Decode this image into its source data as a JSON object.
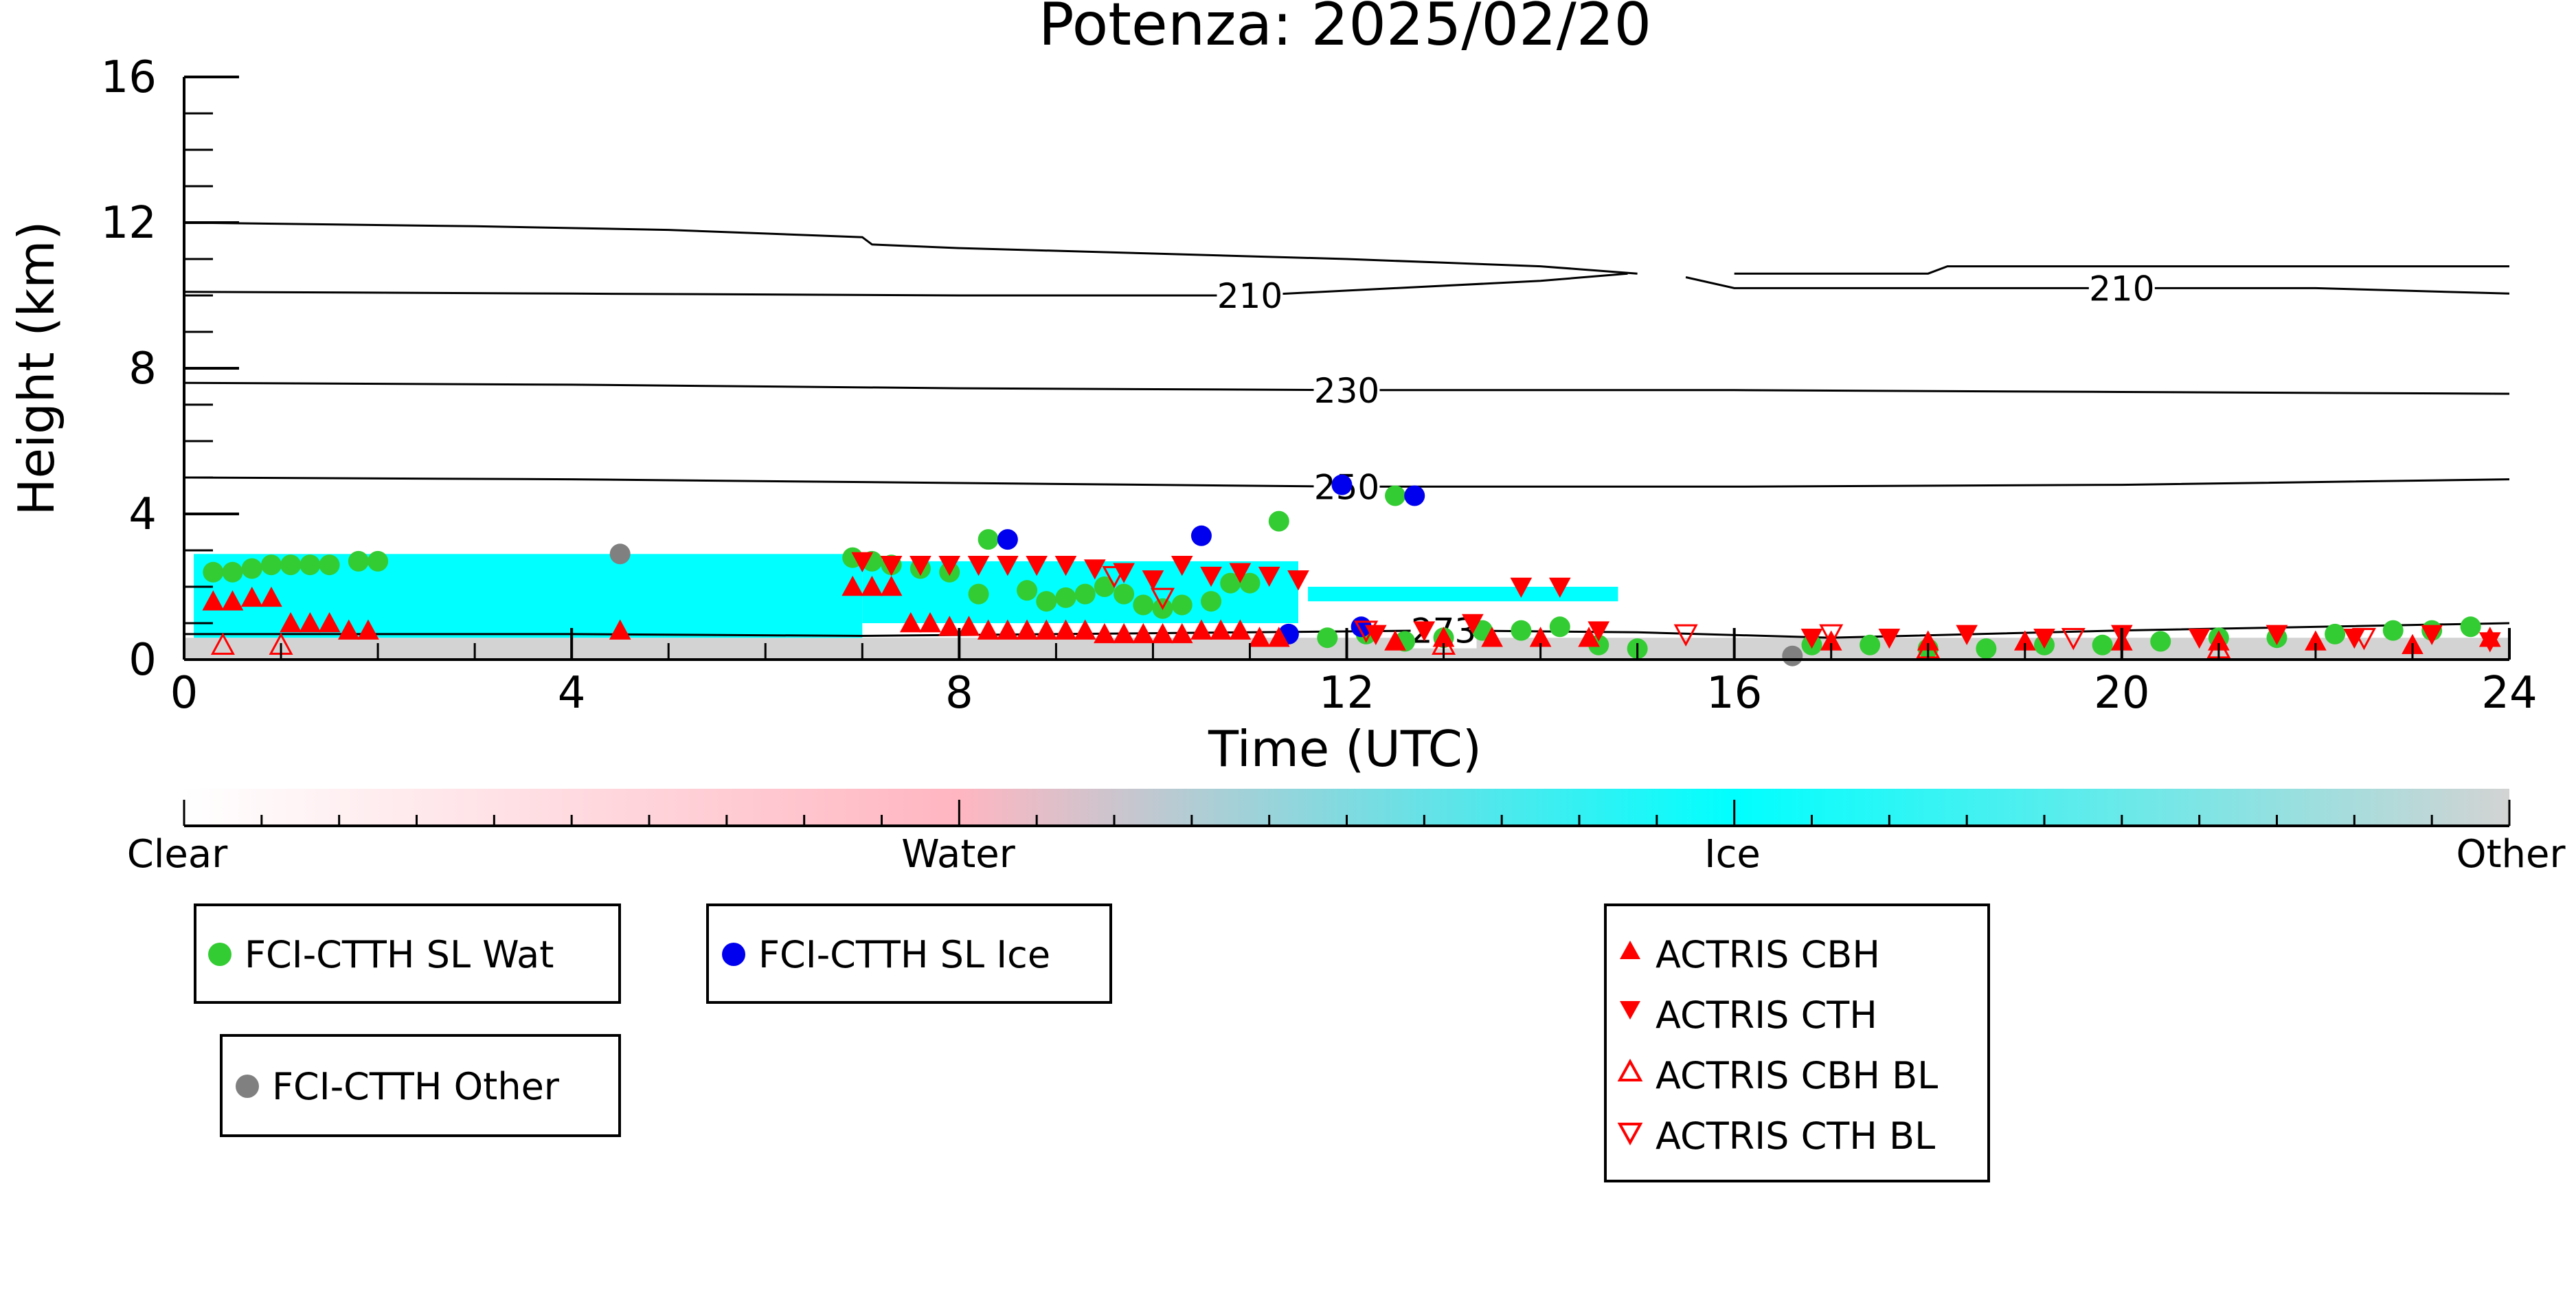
{
  "chart_data": {
    "type": "scatter",
    "title": "Potenza: 2025/02/20",
    "xlabel": "Time (UTC)",
    "ylabel": "Height (km)",
    "xlim": [
      0,
      24
    ],
    "ylim": [
      0,
      16
    ],
    "x_ticks": [
      "0",
      "4",
      "8",
      "12",
      "16",
      "20",
      "24"
    ],
    "y_ticks": [
      "0",
      "4",
      "8",
      "12",
      "16"
    ],
    "colorbar": {
      "labels": [
        "Clear",
        "Water",
        "Ice",
        "Other"
      ],
      "colors": [
        "#ffffff",
        "#ffb6c1",
        "#00ffff",
        "#d3d3d3"
      ]
    },
    "contours": [
      {
        "label": "210",
        "points": [
          [
            0,
            10.1
          ],
          [
            4,
            10.05
          ],
          [
            8,
            10.0
          ],
          [
            11,
            10.0
          ],
          [
            12.5,
            10.2
          ],
          [
            14,
            10.4
          ],
          [
            14.9,
            10.6
          ]
        ]
      },
      {
        "label": "210",
        "points": [
          [
            15.5,
            10.5
          ],
          [
            16,
            10.2
          ],
          [
            18,
            10.2
          ],
          [
            20,
            10.2
          ],
          [
            22,
            10.2
          ],
          [
            24,
            10.05
          ]
        ]
      },
      {
        "label": "",
        "points": [
          [
            0,
            12.0
          ],
          [
            3,
            11.9
          ],
          [
            5,
            11.8
          ],
          [
            7,
            11.6
          ],
          [
            7.1,
            11.4
          ],
          [
            8,
            11.3
          ],
          [
            10,
            11.15
          ],
          [
            12,
            11.0
          ],
          [
            13,
            10.9
          ],
          [
            14,
            10.8
          ],
          [
            15,
            10.6
          ]
        ]
      },
      {
        "label": "",
        "points": [
          [
            16,
            10.6
          ],
          [
            17,
            10.6
          ],
          [
            18,
            10.6
          ],
          [
            18.2,
            10.8
          ],
          [
            20,
            10.8
          ],
          [
            22,
            10.8
          ],
          [
            24,
            10.8
          ]
        ]
      },
      {
        "label": "230",
        "points": [
          [
            0,
            7.6
          ],
          [
            4,
            7.55
          ],
          [
            8,
            7.45
          ],
          [
            12,
            7.4
          ],
          [
            16,
            7.4
          ],
          [
            20,
            7.35
          ],
          [
            24,
            7.3
          ]
        ]
      },
      {
        "label": "250",
        "points": [
          [
            0,
            5.0
          ],
          [
            4,
            4.95
          ],
          [
            8,
            4.85
          ],
          [
            12,
            4.75
          ],
          [
            16,
            4.75
          ],
          [
            20,
            4.8
          ],
          [
            24,
            4.95
          ]
        ]
      },
      {
        "label": "273",
        "points": [
          [
            0,
            0.7
          ],
          [
            4,
            0.7
          ],
          [
            7,
            0.65
          ],
          [
            9,
            0.7
          ],
          [
            11,
            0.75
          ],
          [
            13,
            0.8
          ],
          [
            15,
            0.75
          ],
          [
            17,
            0.6
          ],
          [
            20,
            0.8
          ],
          [
            24,
            1.0
          ]
        ]
      }
    ],
    "ice_regions": [
      {
        "x": [
          0.1,
          7.0
        ],
        "y": [
          0.6,
          2.9
        ]
      },
      {
        "x": [
          7.0,
          11.5
        ],
        "y": [
          1.0,
          2.7
        ]
      },
      {
        "x": [
          11.6,
          14.8
        ],
        "y": [
          1.6,
          2.0
        ]
      }
    ],
    "series": [
      {
        "name": "FCI-CTTH SL Wat",
        "color": "#33cc33",
        "marker": "circle",
        "x": [
          0.3,
          0.5,
          0.7,
          0.9,
          1.1,
          1.3,
          1.5,
          1.8,
          2.0,
          6.9,
          7.1,
          7.3,
          7.6,
          7.9,
          8.2,
          8.3,
          8.7,
          8.9,
          9.1,
          9.3,
          9.5,
          9.7,
          9.9,
          10.1,
          10.3,
          10.6,
          10.8,
          11.0,
          11.3,
          12.5,
          11.8,
          12.2,
          12.6,
          13.0,
          13.4,
          13.8,
          14.2,
          14.6,
          15.0,
          16.8,
          17.4,
          18.0,
          18.6,
          19.2,
          19.8,
          20.4,
          21.0,
          21.6,
          22.2,
          22.8,
          23.2,
          23.6
        ],
        "y": [
          2.4,
          2.4,
          2.5,
          2.6,
          2.6,
          2.6,
          2.6,
          2.7,
          2.7,
          2.8,
          2.7,
          2.6,
          2.5,
          2.4,
          1.8,
          3.3,
          1.9,
          1.6,
          1.7,
          1.8,
          2.0,
          1.8,
          1.5,
          1.4,
          1.5,
          1.6,
          2.1,
          2.1,
          3.8,
          4.5,
          0.6,
          0.7,
          0.5,
          0.6,
          0.8,
          0.8,
          0.9,
          0.4,
          0.3,
          0.4,
          0.4,
          0.3,
          0.3,
          0.4,
          0.4,
          0.5,
          0.6,
          0.6,
          0.7,
          0.8,
          0.8,
          0.9
        ]
      },
      {
        "name": "FCI-CTTH SL Ice",
        "color": "#0000ee",
        "marker": "circle",
        "x": [
          8.5,
          10.5,
          11.4,
          11.95,
          12.15,
          12.7
        ],
        "y": [
          3.3,
          3.4,
          0.7,
          4.8,
          0.9,
          4.5
        ]
      },
      {
        "name": "FCI-CTTH Other",
        "color": "#808080",
        "marker": "circle",
        "x": [
          4.5,
          16.6
        ],
        "y": [
          2.9,
          0.1
        ]
      },
      {
        "name": "ACTRIS CBH",
        "color": "#ff0000",
        "marker": "triangle-up",
        "x": [
          0.3,
          0.5,
          0.7,
          0.9,
          1.1,
          1.3,
          1.5,
          1.7,
          1.9,
          4.5,
          6.9,
          7.1,
          7.3,
          7.5,
          7.7,
          7.9,
          8.1,
          8.3,
          8.5,
          8.7,
          8.9,
          9.1,
          9.3,
          9.5,
          9.7,
          9.9,
          10.1,
          10.3,
          10.5,
          10.7,
          10.9,
          11.1,
          11.3,
          12.5,
          13.0,
          13.5,
          14.0,
          14.5,
          17.0,
          18.0,
          19.0,
          20.0,
          21.0,
          22.0,
          23.0,
          23.8
        ],
        "y": [
          1.6,
          1.6,
          1.7,
          1.7,
          1.0,
          1.0,
          1.0,
          0.8,
          0.8,
          0.8,
          2.0,
          2.0,
          2.0,
          1.0,
          1.0,
          0.9,
          0.9,
          0.8,
          0.8,
          0.8,
          0.8,
          0.8,
          0.8,
          0.7,
          0.7,
          0.7,
          0.7,
          0.7,
          0.8,
          0.8,
          0.8,
          0.6,
          0.6,
          0.5,
          0.6,
          0.6,
          0.6,
          0.6,
          0.5,
          0.5,
          0.5,
          0.5,
          0.5,
          0.5,
          0.4,
          0.6
        ]
      },
      {
        "name": "ACTRIS CTH",
        "color": "#ff0000",
        "marker": "triangle-down",
        "x": [
          7.0,
          7.3,
          7.6,
          7.9,
          8.2,
          8.5,
          8.8,
          9.1,
          9.4,
          9.7,
          10.0,
          10.3,
          10.6,
          10.9,
          11.2,
          11.5,
          12.3,
          12.8,
          13.3,
          13.8,
          14.2,
          14.6,
          16.8,
          17.6,
          18.4,
          19.2,
          20.0,
          20.8,
          21.6,
          22.4,
          23.2,
          23.8
        ],
        "y": [
          2.7,
          2.6,
          2.6,
          2.6,
          2.6,
          2.6,
          2.6,
          2.6,
          2.5,
          2.4,
          2.2,
          2.6,
          2.3,
          2.4,
          2.3,
          2.2,
          0.7,
          0.8,
          1.0,
          2.0,
          2.0,
          0.8,
          0.6,
          0.6,
          0.7,
          0.6,
          0.7,
          0.6,
          0.7,
          0.6,
          0.7,
          0.5
        ]
      },
      {
        "name": "ACTRIS CBH BL",
        "color": "#ff0000",
        "marker": "triangle-up-open",
        "x": [
          0.4,
          1.0,
          13.0,
          18.0,
          21.0
        ],
        "y": [
          0.4,
          0.4,
          0.4,
          0.3,
          0.3
        ]
      },
      {
        "name": "ACTRIS CTH BL",
        "color": "#ff0000",
        "marker": "triangle-down-open",
        "x": [
          9.6,
          10.1,
          12.2,
          15.5,
          17.0,
          19.5,
          22.5
        ],
        "y": [
          2.3,
          1.7,
          0.8,
          0.7,
          0.7,
          0.6,
          0.6
        ]
      }
    ],
    "legend": {
      "placement": "bottom",
      "box1": [
        "FCI-CTTH SL Wat"
      ],
      "box2": [
        "FCI-CTTH SL Ice"
      ],
      "box3": [
        "FCI-CTTH Other"
      ],
      "box4": [
        "ACTRIS CBH",
        "ACTRIS CTH",
        "ACTRIS CBH BL",
        "ACTRIS CTH BL"
      ]
    }
  }
}
